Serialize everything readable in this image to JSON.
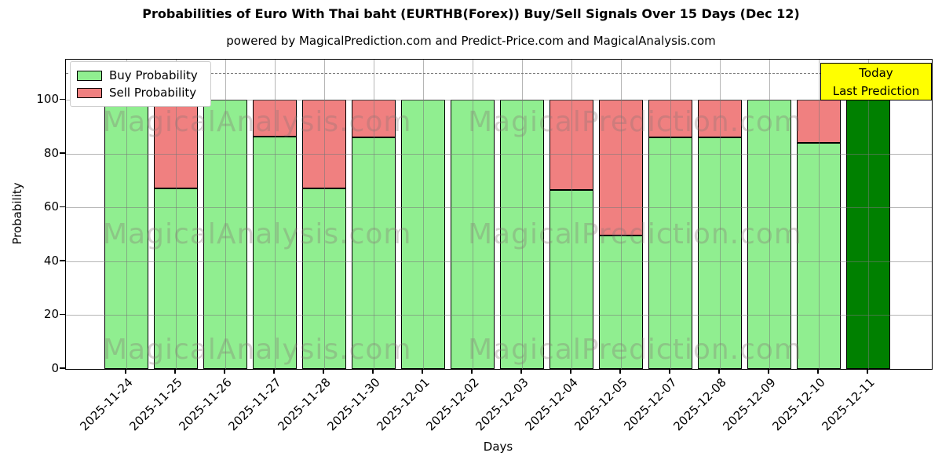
{
  "title": "Probabilities of Euro With Thai baht (EURTHB(Forex)) Buy/Sell Signals Over 15 Days (Dec 12)",
  "subtitle": "powered by MagicalPrediction.com and Predict-Price.com and MagicalAnalysis.com",
  "legend": [
    {
      "label": "Buy Probability",
      "color": "#90EE90"
    },
    {
      "label": "Sell Probability",
      "color": "#F08080"
    }
  ],
  "annotation_box": {
    "line1": "Today",
    "line2": "Last Prediction",
    "bg": "#FFFF00",
    "border": "#000000"
  },
  "watermarks": [
    "MagicalAnalysis.com",
    "MagicalPrediction.com"
  ],
  "chart_data": {
    "type": "bar",
    "stacked": true,
    "categories": [
      "2025-11-24",
      "2025-11-25",
      "2025-11-26",
      "2025-11-27",
      "2025-11-28",
      "2025-11-30",
      "2025-12-01",
      "2025-12-02",
      "2025-12-03",
      "2025-12-04",
      "2025-12-05",
      "2025-12-07",
      "2025-12-08",
      "2025-12-09",
      "2025-12-10",
      "2025-12-11"
    ],
    "series": [
      {
        "name": "Buy Probability",
        "color": "#90EE90",
        "values": [
          100,
          67,
          100,
          86.5,
          67,
          86,
          100,
          100,
          100,
          66.5,
          49.5,
          86,
          86,
          100,
          84,
          100
        ]
      },
      {
        "name": "Sell Probability",
        "color": "#F08080",
        "values": [
          0,
          33,
          0,
          13.5,
          33,
          14,
          0,
          0,
          0,
          33.5,
          50.5,
          14,
          14,
          0,
          16,
          0
        ]
      }
    ],
    "today_bar": {
      "index": 15,
      "color": "#008000"
    },
    "xlabel": "Days",
    "ylabel": "Probability",
    "yticks": [
      0,
      20,
      40,
      60,
      80,
      100
    ],
    "ylim": [
      0,
      115
    ],
    "dashed_line_y": 110,
    "grid": true,
    "legend_position": "upper left"
  }
}
